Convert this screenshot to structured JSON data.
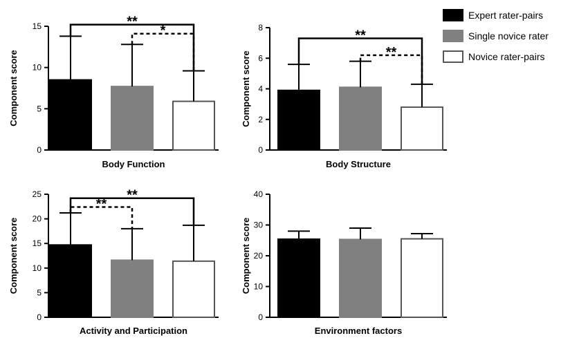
{
  "legend": {
    "items": [
      {
        "label": "Expert rater-pairs",
        "color": "#000000"
      },
      {
        "label": "Single novice rater",
        "color": "#808080"
      },
      {
        "label": "Novice rater-pairs",
        "color": "#ffffff"
      }
    ]
  },
  "chart_data": [
    {
      "type": "bar",
      "xlabel": "Body Function",
      "ylabel": "Component score",
      "ylim": [
        0,
        15
      ],
      "yticks": [
        0,
        5,
        10,
        15
      ],
      "categories": [
        "Expert rater-pairs",
        "Single novice rater",
        "Novice rater-pairs"
      ],
      "values": [
        8.5,
        7.7,
        5.9
      ],
      "error_upper": [
        13.8,
        12.8,
        9.6
      ],
      "significance": [
        {
          "from": 0,
          "to": 2,
          "label": "**",
          "style": "solid",
          "y": 15.2
        },
        {
          "from": 1,
          "to": 2,
          "label": "*",
          "style": "dashed",
          "y": 14.1
        }
      ]
    },
    {
      "type": "bar",
      "xlabel": "Body Structure",
      "ylabel": "Component score",
      "ylim": [
        0,
        8
      ],
      "yticks": [
        0,
        2,
        4,
        6,
        8
      ],
      "categories": [
        "Expert rater-pairs",
        "Single novice rater",
        "Novice rater-pairs"
      ],
      "values": [
        3.9,
        4.1,
        2.8
      ],
      "error_upper": [
        5.6,
        5.8,
        4.3
      ],
      "significance": [
        {
          "from": 0,
          "to": 2,
          "label": "**",
          "style": "solid",
          "y": 7.3
        },
        {
          "from": 1,
          "to": 2,
          "label": "**",
          "style": "dashed",
          "y": 6.2
        }
      ]
    },
    {
      "type": "bar",
      "xlabel": "Activity and Participation",
      "ylabel": "Component score",
      "ylim": [
        0,
        25
      ],
      "yticks": [
        0,
        5,
        10,
        15,
        20,
        25
      ],
      "categories": [
        "Expert rater-pairs",
        "Single novice rater",
        "Novice rater-pairs"
      ],
      "values": [
        14.7,
        11.6,
        11.4
      ],
      "error_upper": [
        21.2,
        18.0,
        18.7
      ],
      "significance": [
        {
          "from": 0,
          "to": 2,
          "label": "**",
          "style": "solid",
          "y": 24.2
        },
        {
          "from": 0,
          "to": 1,
          "label": "**",
          "style": "dashed",
          "y": 22.4
        }
      ]
    },
    {
      "type": "bar",
      "xlabel": "Environment factors",
      "ylabel": "Component score",
      "ylim": [
        0,
        40
      ],
      "yticks": [
        0,
        10,
        20,
        30,
        40
      ],
      "categories": [
        "Expert rater-pairs",
        "Single novice rater",
        "Novice rater-pairs"
      ],
      "values": [
        25.4,
        25.3,
        25.5
      ],
      "error_upper": [
        28.0,
        29.0,
        27.2
      ],
      "significance": []
    }
  ]
}
